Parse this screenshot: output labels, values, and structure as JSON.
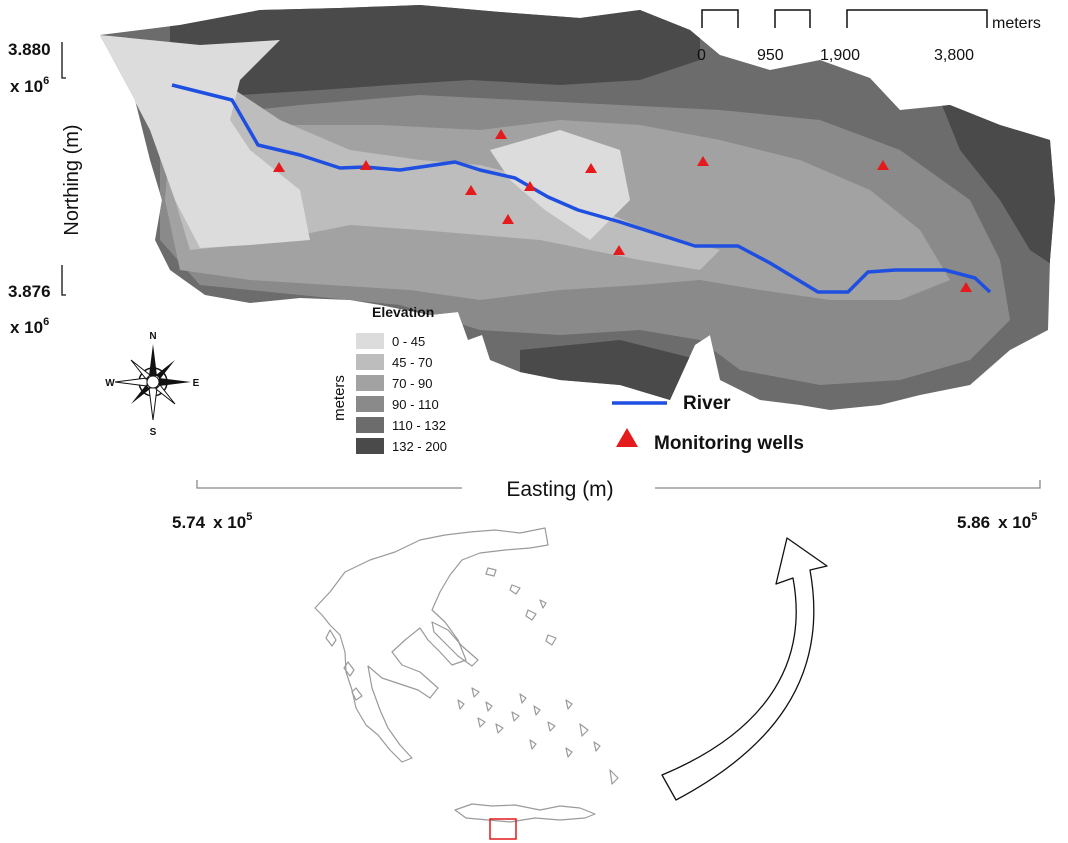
{
  "scale_bar": {
    "unit": "meters",
    "ticks": [
      "0",
      "950",
      "1,900",
      "3,800"
    ]
  },
  "axes": {
    "northing_label": "Northing (m)",
    "easting_label": "Easting (m)",
    "northing_top": {
      "mantissa": "3.880",
      "base": "x 10",
      "exp": "6"
    },
    "northing_bottom": {
      "mantissa": "3.876",
      "base": "x 10",
      "exp": "6"
    },
    "easting_left": {
      "mantissa": "5.74",
      "base": "x 10",
      "exp": "5"
    },
    "easting_right": {
      "mantissa": "5.86",
      "base": "x 10",
      "exp": "5"
    }
  },
  "compass": {
    "n": "N",
    "s": "S",
    "e": "E",
    "w": "W"
  },
  "elevation_legend": {
    "title": "Elevation",
    "unit": "meters",
    "classes": [
      {
        "label": "0 - 45",
        "color": "#dcdcdc"
      },
      {
        "label": "45 - 70",
        "color": "#bdbdbd"
      },
      {
        "label": "70 - 90",
        "color": "#a2a2a2"
      },
      {
        "label": "90 - 110",
        "color": "#8a8a8a"
      },
      {
        "label": "110 - 132",
        "color": "#6c6c6c"
      },
      {
        "label": "132 - 200",
        "color": "#4a4a4a"
      }
    ]
  },
  "feature_legend": {
    "river": {
      "label": "River",
      "color": "#1f4fe0"
    },
    "wells": {
      "label": "Monitoring wells",
      "color": "#e41a1c"
    }
  },
  "inset": {
    "locator_color": "#e41a1c"
  }
}
